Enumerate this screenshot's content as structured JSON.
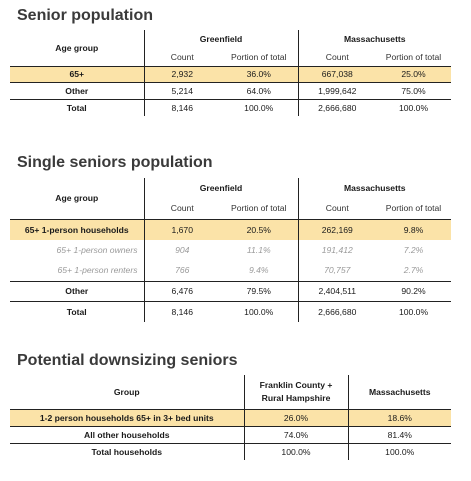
{
  "senior_population": {
    "title": "Senior population",
    "age_group_header": "Age group",
    "greenfield_header": "Greenfield",
    "massachusetts_header": "Massachusetts",
    "count_label": "Count",
    "portion_label": "Portion of total",
    "rows": [
      {
        "label": "65+",
        "g_count": "2,932",
        "g_pct": "36.0%",
        "m_count": "667,038",
        "m_pct": "25.0%"
      },
      {
        "label": "Other",
        "g_count": "5,214",
        "g_pct": "64.0%",
        "m_count": "1,999,642",
        "m_pct": "75.0%"
      },
      {
        "label": "Total",
        "g_count": "8,146",
        "g_pct": "100.0%",
        "m_count": "2,666,680",
        "m_pct": "100.0%"
      }
    ]
  },
  "single_seniors": {
    "title": "Single seniors population",
    "age_group_header": "Age group",
    "greenfield_header": "Greenfield",
    "massachusetts_header": "Massachusetts",
    "count_label": "Count",
    "portion_label": "Portion of total",
    "rows": [
      {
        "label": "65+ 1-person households",
        "g_count": "1,670",
        "g_pct": "20.5%",
        "m_count": "262,169",
        "m_pct": "9.8%"
      },
      {
        "label": "65+ 1-person owners",
        "g_count": "904",
        "g_pct": "11.1%",
        "m_count": "191,412",
        "m_pct": "7.2%"
      },
      {
        "label": "65+ 1-person renters",
        "g_count": "766",
        "g_pct": "9.4%",
        "m_count": "70,757",
        "m_pct": "2.7%"
      },
      {
        "label": "Other",
        "g_count": "6,476",
        "g_pct": "79.5%",
        "m_count": "2,404,511",
        "m_pct": "90.2%"
      },
      {
        "label": "Total",
        "g_count": "8,146",
        "g_pct": "100.0%",
        "m_count": "2,666,680",
        "m_pct": "100.0%"
      }
    ]
  },
  "downsizing": {
    "title": "Potential downsizing seniors",
    "group_header": "Group",
    "franklin_header_line1": "Franklin County +",
    "franklin_header_line2": "Rural Hampshire",
    "massachusetts_header": "Massachusetts",
    "rows": [
      {
        "label": "1-2 person households 65+ in 3+ bed units",
        "franklin": "26.0%",
        "mass": "18.6%"
      },
      {
        "label": "All other households",
        "franklin": "74.0%",
        "mass": "81.4%"
      },
      {
        "label": "Total households",
        "franklin": "100.0%",
        "mass": "100.0%"
      }
    ]
  },
  "colors": {
    "highlight": "#fbe3a8",
    "title": "#3a3a3a",
    "sub_row_text": "#9a9a9a"
  }
}
